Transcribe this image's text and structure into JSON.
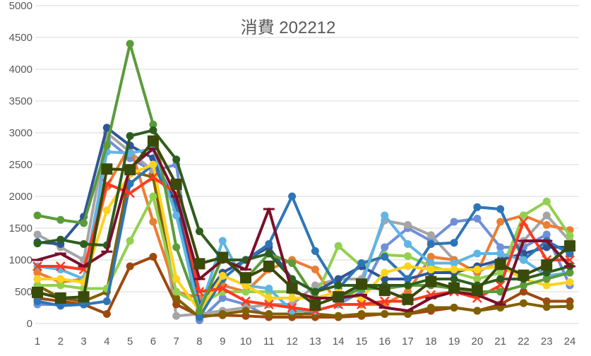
{
  "chart_data": {
    "type": "line",
    "title": "消費 202212",
    "x": [
      1,
      2,
      3,
      4,
      5,
      6,
      7,
      8,
      9,
      10,
      11,
      12,
      13,
      14,
      15,
      16,
      17,
      18,
      19,
      20,
      21,
      22,
      23,
      24
    ],
    "xlim": [
      1,
      24
    ],
    "ylim": [
      0,
      5000
    ],
    "yticks": [
      0,
      500,
      1000,
      1500,
      2000,
      2500,
      3000,
      3500,
      4000,
      4500,
      5000
    ],
    "grid": true,
    "series": [
      {
        "color": "#6f8fd8",
        "marker": "circle",
        "values": [
          300,
          300,
          300,
          2900,
          2600,
          2400,
          2500,
          50,
          400,
          300,
          100,
          100,
          200,
          300,
          500,
          1200,
          1500,
          1300,
          1600,
          1650,
          1200,
          1200,
          1400,
          600
        ]
      },
      {
        "color": "#a5a5a5",
        "marker": "circle",
        "values": [
          1400,
          1200,
          1000,
          3000,
          2700,
          2400,
          120,
          150,
          200,
          250,
          300,
          300,
          600,
          700,
          700,
          1620,
          1550,
          1390,
          1000,
          800,
          1000,
          1300,
          1700,
          1300
        ]
      },
      {
        "color": "#9e480e",
        "marker": "circle",
        "values": [
          400,
          350,
          300,
          150,
          900,
          1050,
          300,
          120,
          130,
          120,
          100,
          100,
          100,
          100,
          120,
          150,
          150,
          200,
          250,
          200,
          300,
          500,
          350,
          350
        ]
      },
      {
        "color": "#806000",
        "marker": "circle",
        "values": [
          600,
          400,
          350,
          500,
          2400,
          2300,
          400,
          100,
          150,
          200,
          150,
          150,
          150,
          120,
          150,
          150,
          150,
          250,
          250,
          200,
          250,
          320,
          260,
          270
        ]
      },
      {
        "color": "#ed7d31",
        "marker": "circle",
        "values": [
          800,
          650,
          700,
          2150,
          2800,
          1600,
          500,
          400,
          600,
          500,
          850,
          1000,
          850,
          300,
          300,
          300,
          500,
          1050,
          1000,
          800,
          1600,
          1700,
          1550,
          1470
        ]
      },
      {
        "color": "#92d050",
        "marker": "circle",
        "values": [
          600,
          600,
          550,
          550,
          1300,
          2000,
          500,
          300,
          500,
          500,
          500,
          500,
          400,
          1220,
          900,
          1080,
          1060,
          900,
          800,
          700,
          800,
          1700,
          1920,
          1380
        ]
      },
      {
        "color": "#2f5597",
        "marker": "circle",
        "values": [
          1280,
          1250,
          1680,
          3080,
          2800,
          2600,
          1900,
          300,
          800,
          1000,
          1200,
          700,
          500,
          700,
          900,
          700,
          700,
          800,
          800,
          900,
          1000,
          1100,
          1200,
          1200
        ]
      },
      {
        "color": "#2e75b6",
        "marker": "circle",
        "values": [
          350,
          280,
          300,
          350,
          2200,
          2500,
          1800,
          100,
          700,
          1000,
          1250,
          2000,
          1140,
          550,
          950,
          1050,
          700,
          1250,
          1270,
          1830,
          1800,
          1000,
          1300,
          1100
        ]
      },
      {
        "color": "#5fb5e5",
        "marker": "circle",
        "values": [
          900,
          850,
          700,
          2700,
          2680,
          2750,
          1700,
          200,
          1300,
          600,
          550,
          200,
          200,
          300,
          600,
          1700,
          1250,
          950,
          950,
          1100,
          1100,
          1000,
          750,
          800
        ]
      },
      {
        "color": "#ffd21f",
        "marker": "circle",
        "values": [
          700,
          700,
          650,
          1780,
          2350,
          2500,
          700,
          200,
          750,
          600,
          400,
          400,
          400,
          500,
          400,
          800,
          900,
          850,
          850,
          850,
          900,
          700,
          600,
          650
        ]
      },
      {
        "color": "#ff3b1f",
        "marker": "x",
        "values": [
          900,
          900,
          850,
          2200,
          2050,
          2300,
          2050,
          500,
          550,
          350,
          300,
          250,
          200,
          300,
          300,
          350,
          350,
          450,
          500,
          400,
          600,
          1600,
          1000,
          1000
        ]
      },
      {
        "color": "#5b9b3a",
        "marker": "circle",
        "values": [
          1700,
          1630,
          1580,
          2800,
          4400,
          3130,
          1200,
          200,
          1050,
          700,
          1100,
          950,
          400,
          400,
          550,
          550,
          600,
          600,
          550,
          500,
          500,
          600,
          700,
          800
        ]
      },
      {
        "color": "#2e5e1e",
        "marker": "circle",
        "values": [
          1260,
          1320,
          1250,
          1230,
          2950,
          3040,
          2580,
          1450,
          1000,
          1000,
          1100,
          700,
          500,
          600,
          600,
          600,
          600,
          700,
          700,
          600,
          700,
          700,
          800,
          900
        ]
      },
      {
        "color": "#7b0f2a",
        "marker": "dash",
        "values": [
          1000,
          1100,
          900,
          1130,
          2450,
          2750,
          2000,
          700,
          1000,
          850,
          1800,
          500,
          400,
          400,
          450,
          250,
          200,
          400,
          500,
          450,
          300,
          1300,
          1300,
          900
        ]
      },
      {
        "color": "#3a4a0a",
        "marker": "square",
        "values": [
          490,
          400,
          420,
          2430,
          2420,
          2870,
          2190,
          940,
          1040,
          720,
          900,
          560,
          290,
          420,
          620,
          520,
          380,
          660,
          560,
          520,
          930,
          760,
          920,
          1220
        ]
      }
    ]
  }
}
